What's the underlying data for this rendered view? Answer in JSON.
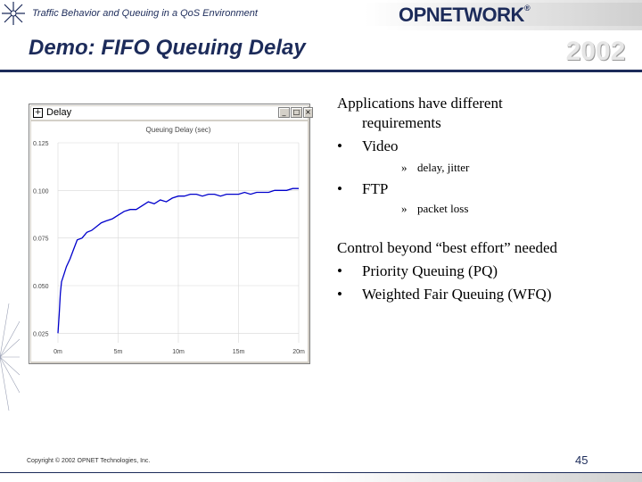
{
  "header": {
    "title": "Traffic Behavior and Queuing in a QoS Environment",
    "logo": "OPNETWORK",
    "logo_tm": "®",
    "badge": "2002"
  },
  "slide": {
    "title": "Demo:  FIFO Queuing Delay"
  },
  "window": {
    "title": "Delay",
    "sys_icon": "+",
    "controls": {
      "minimize": "_",
      "maximize": "□",
      "close": "×"
    }
  },
  "chart_data": {
    "type": "line",
    "title": "Queuing Delay (sec)",
    "xlabel": "",
    "ylabel": "",
    "x_ticks": [
      "0m",
      "5m",
      "10m",
      "15m",
      "20m"
    ],
    "y_ticks": [
      "0.025",
      "0.050",
      "0.075",
      "0.100",
      "0.125"
    ],
    "xlim": [
      0,
      20
    ],
    "ylim": [
      0.02,
      0.125
    ],
    "series": [
      {
        "x": [
          0,
          0.1,
          0.2,
          0.3,
          0.5,
          0.7,
          1.0,
          1.3,
          1.6,
          2.0,
          2.4,
          2.8,
          3.2,
          3.6,
          4.0,
          4.5,
          5.0,
          5.5,
          6.0,
          6.5,
          7.0,
          7.5,
          8.0,
          8.5,
          9.0,
          9.5,
          10.0,
          10.5,
          11.0,
          11.5,
          12.0,
          12.5,
          13.0,
          13.5,
          14.0,
          14.5,
          15.0,
          15.5,
          16.0,
          16.5,
          17.0,
          17.5,
          18.0,
          18.5,
          19.0,
          19.5,
          20.0
        ],
        "values": [
          0.025,
          0.035,
          0.046,
          0.052,
          0.056,
          0.06,
          0.064,
          0.069,
          0.074,
          0.075,
          0.078,
          0.079,
          0.081,
          0.083,
          0.084,
          0.085,
          0.087,
          0.089,
          0.09,
          0.09,
          0.092,
          0.094,
          0.093,
          0.095,
          0.094,
          0.096,
          0.097,
          0.097,
          0.098,
          0.098,
          0.097,
          0.098,
          0.098,
          0.097,
          0.098,
          0.098,
          0.098,
          0.099,
          0.098,
          0.099,
          0.099,
          0.099,
          0.1,
          0.1,
          0.1,
          0.101,
          0.101
        ],
        "color": "#0000cc"
      }
    ],
    "grid": true
  },
  "bullets": {
    "intro_line1": "Applications have different",
    "intro_line2": "requirements",
    "video": "Video",
    "video_sub": "delay, jitter",
    "ftp": "FTP",
    "ftp_sub": "packet loss",
    "control": "Control beyond “best effort” needed",
    "pq": "Priority Queuing (PQ)",
    "wfq": "Weighted Fair Queuing (WFQ)",
    "bullet_char": "•",
    "sub_char": "»"
  },
  "footer": {
    "copyright": "Copyright © 2002 OPNET Technologies, Inc.",
    "page": "45"
  },
  "colors": {
    "navy": "#1c2b5a",
    "series": "#0000cc",
    "window_bg": "#d4d0c8"
  }
}
